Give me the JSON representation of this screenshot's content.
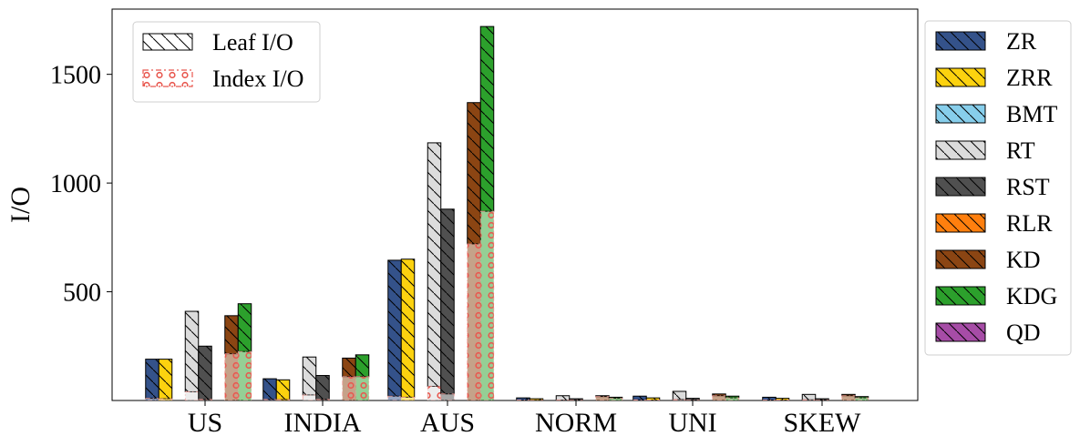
{
  "chart_data": {
    "type": "bar",
    "ylabel": "I/O",
    "xlabel": "",
    "ylim": [
      0,
      1800
    ],
    "yticks": [
      "500",
      "1000",
      "1500"
    ],
    "ytick_values": [
      500,
      1000,
      1500
    ],
    "grid": false,
    "categories": [
      "US",
      "INDIA",
      "AUS",
      "NORM",
      "UNI",
      "SKEW"
    ],
    "stack_legend": {
      "placement": "top-left",
      "items": [
        {
          "key": "leaf",
          "label": "Leaf I/O"
        },
        {
          "key": "index",
          "label": "Index I/O"
        }
      ]
    },
    "series_legend_placement": "right-outside",
    "series": [
      {
        "name": "ZR",
        "color": "#34528a",
        "total": [
          190,
          100,
          645,
          12,
          20,
          15
        ],
        "index": [
          10,
          5,
          20,
          2,
          3,
          2
        ]
      },
      {
        "name": "ZRR",
        "color": "#fcd20f",
        "total": [
          190,
          95,
          650,
          8,
          12,
          10
        ],
        "index": [
          8,
          4,
          15,
          1,
          2,
          2
        ]
      },
      {
        "name": "BMT",
        "color": "#87ceeb",
        "total": [
          0,
          0,
          0,
          0,
          0,
          0
        ],
        "index": [
          0,
          0,
          0,
          0,
          0,
          0
        ]
      },
      {
        "name": "RT",
        "color": "#dcdcdc",
        "total": [
          410,
          200,
          1185,
          22,
          42,
          28
        ],
        "index": [
          40,
          25,
          65,
          2,
          4,
          3
        ]
      },
      {
        "name": "RST",
        "color": "#505050",
        "total": [
          250,
          115,
          880,
          8,
          10,
          8
        ],
        "index": [
          5,
          5,
          30,
          1,
          1,
          1
        ]
      },
      {
        "name": "RLR",
        "color": "#ff7f0e",
        "total": [
          0,
          0,
          0,
          0,
          0,
          0
        ],
        "index": [
          0,
          0,
          0,
          0,
          0,
          0
        ]
      },
      {
        "name": "KD",
        "color": "#8b4513",
        "total": [
          390,
          195,
          1370,
          22,
          30,
          28
        ],
        "index": [
          215,
          110,
          720,
          18,
          22,
          22
        ]
      },
      {
        "name": "KDG",
        "color": "#2ca02c",
        "total": [
          445,
          210,
          1720,
          15,
          20,
          18
        ],
        "index": [
          225,
          110,
          870,
          10,
          12,
          12
        ]
      },
      {
        "name": "QD",
        "color": "#a64ca6",
        "total": [
          0,
          0,
          0,
          0,
          0,
          0
        ],
        "index": [
          0,
          0,
          0,
          0,
          0,
          0
        ]
      }
    ]
  }
}
